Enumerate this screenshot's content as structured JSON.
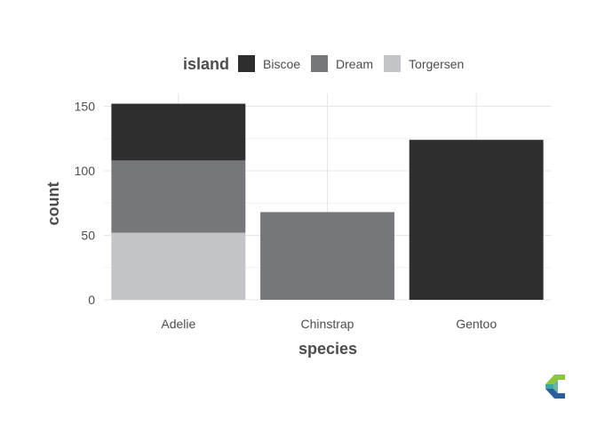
{
  "chart_data": {
    "type": "bar",
    "stacked": true,
    "xlabel": "species",
    "ylabel": "count",
    "categories": [
      "Adelie",
      "Chinstrap",
      "Gentoo"
    ],
    "ylim": [
      0,
      160
    ],
    "yticks": [
      0,
      50,
      100,
      150
    ],
    "grid": true,
    "legend": {
      "title": "island",
      "position": "top"
    },
    "series": [
      {
        "name": "Torgersen",
        "color": "#c3c4c8",
        "values": [
          52,
          0,
          0
        ]
      },
      {
        "name": "Dream",
        "color": "#76777b",
        "values": [
          56,
          68,
          0
        ]
      },
      {
        "name": "Biscoe",
        "color": "#2e2e2e",
        "values": [
          44,
          0,
          124
        ]
      }
    ],
    "legend_order": [
      "Biscoe",
      "Dream",
      "Torgersen"
    ]
  },
  "logo": {
    "name": "chart-logo-icon"
  }
}
